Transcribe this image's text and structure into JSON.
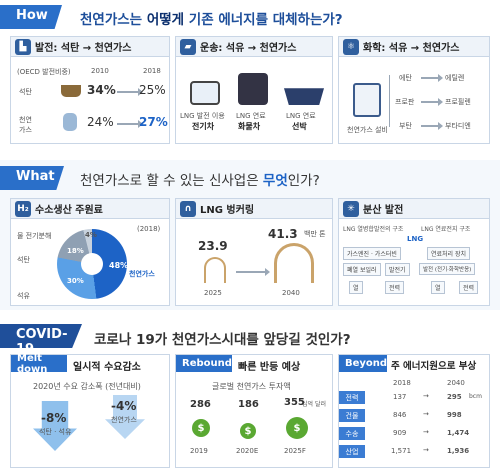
{
  "how": {
    "tag": "How",
    "title_part1": "천연가스는 ",
    "title_bold": "어떻게",
    "title_part2": " 기존 에너지를 대체하는가?",
    "power": {
      "header": "발전: 석탄 → 천연가스",
      "unit": "(OECD 발전비중)",
      "year1": "2010",
      "year2": "2018",
      "coal_label": "석탄",
      "coal_2010": "34%",
      "coal_2018": "25%",
      "gas_label": "천연\n가스",
      "gas_2010": "24%",
      "gas_2018": "27%"
    },
    "transport": {
      "header": "운송: 석유 → 천연가스",
      "items": [
        {
          "cap1": "LNG 발전 이용",
          "cap2": "전기차"
        },
        {
          "cap1": "LNG 연료",
          "cap2": "화물차"
        },
        {
          "cap1": "LNG 연료",
          "cap2": "선박"
        }
      ]
    },
    "chem": {
      "header": "화학: 석유 → 천연가스",
      "facility": "천연가스 설비",
      "rows": [
        {
          "from": "에탄",
          "to": "에틸렌"
        },
        {
          "from": "프로판",
          "to": "프로필렌"
        },
        {
          "from": "부탄",
          "to": "부타디엔"
        }
      ]
    }
  },
  "what": {
    "tag": "What",
    "title_part1": "천연가스로 할 수 있는 신사업은 ",
    "title_bold": "무엇",
    "title_part2": "인가?",
    "hydrogen": {
      "icon": "H₂",
      "header": "수소생산 주원료",
      "year": "(2018)",
      "labels": [
        "물 전기분해",
        "석탄",
        "석유"
      ],
      "pcts": [
        "4%",
        "18%",
        "30%",
        "48%"
      ],
      "gas_label": "천연가스"
    },
    "bunker": {
      "header": "LNG 벙커링",
      "unit": "백만 톤",
      "v2025": "23.9",
      "v2040": "41.3",
      "y2025": "2025",
      "y2040": "2040"
    },
    "dist": {
      "header": "분산 발전",
      "left_title": "LNG 열병합발전의 구조",
      "right_title": "LNG 연료전지 구조",
      "lng": "LNG",
      "left_mid": "가스엔진 · 가스터빈",
      "left_a": "폐열 보일러",
      "left_b": "발전기",
      "right_mid": "연료처리 장치",
      "right_b": "발전 (전기·화학반응)",
      "heat": "열",
      "power": "전력"
    }
  },
  "covid": {
    "tag": "COVID-19",
    "title_part1": "코로나 19가 천연가스시대를 앞당길 것인가?",
    "melt": {
      "label": "Melt down",
      "header": "일시적 수요감소",
      "sub": "2020년 수요 감소폭 (전년대비)",
      "v1": "-8%",
      "c1": "석탄 · 석유",
      "v2": "-4%",
      "c2": "천연가스"
    },
    "rebound": {
      "label": "Rebound",
      "header": "빠른 반등 예상",
      "sub": "글로벌 천연가스 투자액",
      "unit": "십억 달러",
      "vals": [
        "286",
        "186",
        "355"
      ],
      "years": [
        "2019",
        "2020E",
        "2025F"
      ]
    },
    "beyond": {
      "label": "Beyond",
      "header": "주 에너지원으로 부상",
      "y1": "2018",
      "y2": "2040",
      "unit": "bcm",
      "rows": [
        {
          "name": "전력",
          "a": "137",
          "b": "295"
        },
        {
          "name": "건물",
          "a": "846",
          "b": "998"
        },
        {
          "name": "수송",
          "a": "909",
          "b": "1,474"
        },
        {
          "name": "산업",
          "a": "1,571",
          "b": "1,936"
        }
      ]
    }
  }
}
